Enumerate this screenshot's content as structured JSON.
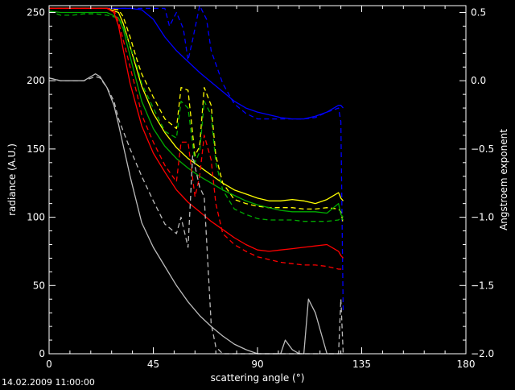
{
  "chart_data": {
    "type": "line",
    "xlabel": "scattering angle (°)",
    "ylabel": "radiance (A.U.)",
    "y2label": "Angstroem exponent",
    "xlim": [
      0,
      180
    ],
    "ylim": [
      0,
      255
    ],
    "y2lim": [
      -2.0,
      0.55
    ],
    "xticks": [
      "0",
      "45",
      "90",
      "135",
      "180"
    ],
    "xtick_values": [
      0,
      45,
      90,
      135,
      180
    ],
    "yticks": [
      "0",
      "50",
      "100",
      "150",
      "200",
      "250"
    ],
    "ytick_values": [
      0,
      50,
      100,
      150,
      200,
      250
    ],
    "y2ticks": [
      "−2.0",
      "−1.5",
      "−1.0",
      "−0.5",
      "0.0",
      "0.5"
    ],
    "y2tick_values": [
      -2.0,
      -1.5,
      -1.0,
      -0.5,
      0.0,
      0.5
    ],
    "timestamp": "14.02.2009 11:00:00",
    "grid": false,
    "series": [
      {
        "color": "#0000ff",
        "dash": false,
        "x": [
          0,
          5,
          10,
          15,
          20,
          25,
          30,
          35,
          40,
          45,
          50,
          55,
          60,
          65,
          70,
          75,
          80,
          85,
          90,
          95,
          100,
          105,
          110,
          115,
          120,
          125,
          126,
          127
        ],
        "y": [
          253,
          253,
          253,
          253,
          253,
          253,
          253,
          253,
          252,
          245,
          232,
          222,
          214,
          206,
          199,
          192,
          185,
          180,
          177,
          175,
          173,
          172,
          172,
          174,
          177,
          182,
          182,
          180
        ]
      },
      {
        "color": "#0000ff",
        "dash": true,
        "x": [
          0,
          5,
          10,
          15,
          20,
          25,
          30,
          35,
          40,
          45,
          50,
          52,
          55,
          58,
          60,
          62,
          65,
          68,
          70,
          75,
          80,
          85,
          90,
          95,
          100,
          105,
          110,
          115,
          120,
          125,
          126,
          127
        ],
        "y": [
          253,
          253,
          253,
          253,
          253,
          253,
          253,
          253,
          253,
          253,
          253,
          240,
          250,
          238,
          215,
          230,
          255,
          245,
          222,
          198,
          183,
          176,
          172,
          172,
          172,
          172,
          172,
          173,
          177,
          180,
          170,
          30
        ]
      },
      {
        "color": "#ffff00",
        "dash": false,
        "x": [
          0,
          5,
          10,
          15,
          20,
          25,
          30,
          32,
          35,
          40,
          45,
          50,
          55,
          60,
          65,
          70,
          75,
          80,
          85,
          90,
          95,
          100,
          105,
          110,
          115,
          120,
          125,
          126,
          127
        ],
        "y": [
          253,
          253,
          253,
          253,
          253,
          253,
          250,
          242,
          225,
          196,
          176,
          162,
          151,
          143,
          137,
          131,
          125,
          120,
          117,
          114,
          112,
          112,
          113,
          112,
          110,
          113,
          118,
          114,
          112
        ]
      },
      {
        "color": "#ffff00",
        "dash": true,
        "x": [
          0,
          5,
          10,
          15,
          20,
          25,
          30,
          32,
          35,
          38,
          40,
          45,
          50,
          55,
          57,
          60,
          63,
          65,
          67,
          70,
          72,
          75,
          80,
          85,
          90,
          95,
          100,
          105,
          110,
          115,
          120,
          125,
          126,
          127
        ],
        "y": [
          253,
          253,
          253,
          253,
          253,
          253,
          252,
          247,
          232,
          215,
          205,
          188,
          172,
          165,
          195,
          193,
          145,
          152,
          195,
          182,
          145,
          125,
          113,
          110,
          108,
          107,
          107,
          107,
          106,
          106,
          107,
          106,
          104,
          95
        ]
      },
      {
        "color": "#00aa00",
        "dash": false,
        "x": [
          0,
          5,
          10,
          15,
          20,
          25,
          30,
          32,
          35,
          40,
          45,
          50,
          55,
          60,
          65,
          70,
          75,
          80,
          85,
          90,
          95,
          100,
          105,
          110,
          115,
          120,
          125,
          126,
          127
        ],
        "y": [
          251,
          250,
          250,
          250,
          250,
          250,
          246,
          238,
          218,
          185,
          165,
          152,
          143,
          136,
          130,
          125,
          120,
          116,
          112,
          109,
          107,
          105,
          104,
          104,
          104,
          103,
          110,
          102,
          100
        ]
      },
      {
        "color": "#00aa00",
        "dash": true,
        "x": [
          0,
          5,
          10,
          15,
          20,
          25,
          30,
          32,
          35,
          38,
          40,
          45,
          50,
          55,
          57,
          60,
          63,
          65,
          67,
          70,
          72,
          75,
          80,
          85,
          90,
          95,
          100,
          105,
          110,
          115,
          120,
          125,
          126,
          127
        ],
        "y": [
          251,
          248,
          248,
          249,
          249,
          248,
          246,
          240,
          225,
          210,
          198,
          180,
          163,
          158,
          185,
          180,
          140,
          148,
          185,
          175,
          140,
          120,
          106,
          102,
          99,
          98,
          98,
          98,
          97,
          97,
          97,
          98,
          100,
          98
        ]
      },
      {
        "color": "#ff0000",
        "dash": false,
        "x": [
          0,
          5,
          10,
          15,
          20,
          25,
          28,
          30,
          32,
          35,
          40,
          45,
          50,
          55,
          60,
          65,
          70,
          75,
          80,
          85,
          90,
          95,
          100,
          105,
          110,
          115,
          120,
          125,
          126,
          127
        ],
        "y": [
          253,
          253,
          253,
          253,
          253,
          253,
          250,
          240,
          223,
          198,
          167,
          147,
          133,
          120,
          111,
          104,
          97,
          91,
          85,
          80,
          76,
          75,
          76,
          77,
          78,
          79,
          80,
          75,
          72,
          70
        ]
      },
      {
        "color": "#ff0000",
        "dash": true,
        "x": [
          0,
          5,
          10,
          15,
          20,
          25,
          28,
          30,
          32,
          35,
          38,
          40,
          45,
          50,
          55,
          57,
          60,
          63,
          65,
          67,
          70,
          72,
          75,
          80,
          85,
          90,
          95,
          100,
          105,
          110,
          115,
          120,
          125,
          126,
          127
        ],
        "y": [
          253,
          253,
          253,
          253,
          253,
          253,
          252,
          243,
          230,
          210,
          190,
          175,
          155,
          138,
          126,
          155,
          155,
          115,
          130,
          160,
          142,
          110,
          88,
          80,
          75,
          71,
          69,
          67,
          66,
          65,
          65,
          64,
          62,
          62,
          60
        ]
      },
      {
        "color": "#bbbbbb",
        "dash": false,
        "x": [
          0,
          5,
          10,
          15,
          20,
          22,
          25,
          28,
          30,
          35,
          40,
          45,
          50,
          55,
          60,
          65,
          70,
          75,
          80,
          85,
          90,
          95,
          100,
          102,
          105,
          108,
          110,
          112,
          115,
          120,
          125,
          126,
          127
        ],
        "y": [
          202,
          200,
          200,
          200,
          205,
          203,
          195,
          182,
          168,
          130,
          96,
          78,
          64,
          50,
          38,
          28,
          20,
          13,
          7,
          3,
          0,
          0,
          0,
          10,
          3,
          0,
          0,
          40,
          30,
          0,
          0,
          0,
          0
        ]
      },
      {
        "color": "#bbbbbb",
        "dash": true,
        "x": [
          0,
          5,
          10,
          15,
          20,
          22,
          25,
          28,
          30,
          35,
          40,
          45,
          50,
          55,
          57,
          60,
          62,
          65,
          67,
          70,
          72,
          75,
          80,
          85,
          90,
          95,
          100,
          105,
          110,
          115,
          120,
          125,
          126,
          127
        ],
        "y": [
          202,
          200,
          200,
          200,
          203,
          202,
          195,
          185,
          172,
          150,
          130,
          112,
          95,
          88,
          100,
          78,
          145,
          122,
          115,
          22,
          5,
          0,
          0,
          0,
          0,
          0,
          0,
          0,
          0,
          0,
          0,
          0,
          40,
          0
        ]
      }
    ]
  }
}
